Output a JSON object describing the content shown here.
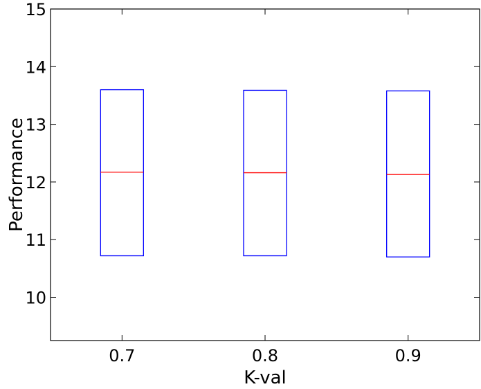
{
  "chart_data": {
    "type": "box",
    "xlabel": "K-val",
    "ylabel": "Performance",
    "xlim": [
      0.65,
      0.95
    ],
    "ylim": [
      9.25,
      15
    ],
    "yticks": [
      10,
      11,
      12,
      13,
      14,
      15
    ],
    "grid": false,
    "categories": [
      "0.7",
      "0.8",
      "0.9"
    ],
    "boxes": [
      {
        "x": 0.7,
        "q1": 10.72,
        "median": 12.17,
        "q3": 13.6
      },
      {
        "x": 0.8,
        "q1": 10.72,
        "median": 12.16,
        "q3": 13.59
      },
      {
        "x": 0.9,
        "q1": 10.7,
        "median": 12.13,
        "q3": 13.58
      }
    ],
    "colors": {
      "box": "#0000ff",
      "median": "#ff0000",
      "axes": "#000000"
    }
  }
}
